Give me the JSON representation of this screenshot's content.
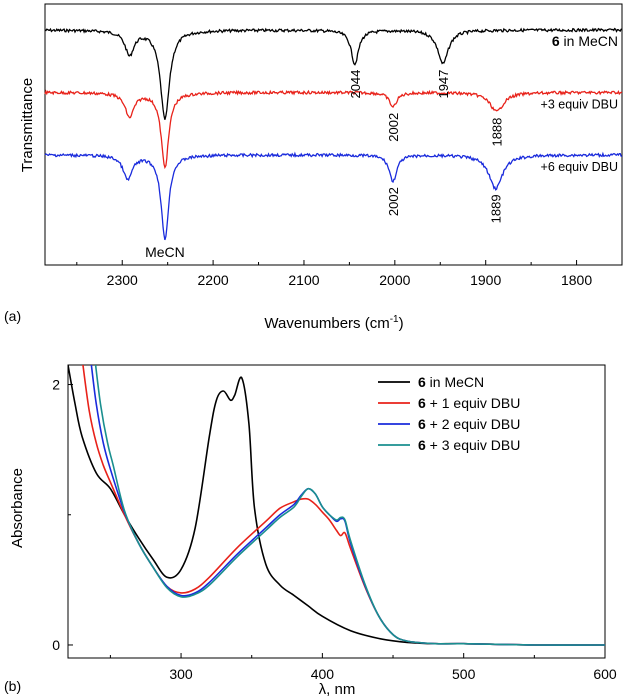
{
  "chart_data": [
    {
      "type": "line",
      "panel_label": "(a)",
      "xlabel": "Wavenumbers (cm",
      "xlabel_sup": "-1",
      "xlabel_close": ")",
      "ylabel": "Transmittance",
      "xlim": [
        2385,
        1750
      ],
      "x_reversed": true,
      "y_ticks_shown": false,
      "x_ticks": [
        2300,
        2200,
        2100,
        2000,
        1900,
        1800
      ],
      "series": [
        {
          "name_bold": "6",
          "name_rest": " in MeCN",
          "color": "#000000",
          "baseline": 0,
          "peaks": [
            {
              "center": 2292,
              "depth": 0.1,
              "width": 6
            },
            {
              "center": 2253,
              "depth": 0.37,
              "width": 6
            },
            {
              "center": 2044,
              "depth": 0.14,
              "width": 5
            },
            {
              "center": 1947,
              "depth": 0.14,
              "width": 7
            }
          ]
        },
        {
          "name": "+3 equiv DBU",
          "color": "#e8221a",
          "baseline": 0.26,
          "peaks": [
            {
              "center": 2292,
              "depth": 0.1,
              "width": 6
            },
            {
              "center": 2253,
              "depth": 0.31,
              "width": 5
            },
            {
              "center": 2002,
              "depth": 0.06,
              "width": 5
            },
            {
              "center": 1888,
              "depth": 0.08,
              "width": 9
            }
          ]
        },
        {
          "name": "+6 equiv DBU",
          "color": "#1a2bdc",
          "baseline": 0.52,
          "peaks": [
            {
              "center": 2294,
              "depth": 0.1,
              "width": 6
            },
            {
              "center": 2253,
              "depth": 0.35,
              "width": 5
            },
            {
              "center": 2002,
              "depth": 0.11,
              "width": 5
            },
            {
              "center": 1889,
              "depth": 0.14,
              "width": 9
            }
          ]
        }
      ],
      "annotations": [
        {
          "text": "2044",
          "x": 2044,
          "series": 0
        },
        {
          "text": "1947",
          "x": 1947,
          "series": 0
        },
        {
          "text": "2002",
          "x": 2002,
          "series": 1
        },
        {
          "text": "1888",
          "x": 1888,
          "series": 1
        },
        {
          "text": "2002",
          "x": 2002,
          "series": 2
        },
        {
          "text": "1889",
          "x": 1889,
          "series": 2
        },
        {
          "text": "MeCN",
          "x": 2253,
          "series": 2
        }
      ]
    },
    {
      "type": "line",
      "panel_label": "(b)",
      "xlabel": "λ, nm",
      "ylabel": "Absorbance",
      "xlim": [
        220,
        600
      ],
      "ylim": [
        -0.1,
        2.15
      ],
      "x_ticks": [
        300,
        400,
        500,
        600
      ],
      "y_ticks": [
        0,
        2
      ],
      "legend_position": "top-right",
      "series": [
        {
          "name_bold": "6",
          "name_rest": " in MeCN",
          "color": "#000000",
          "x": [
            220,
            225,
            230,
            240,
            250,
            260,
            270,
            280,
            290,
            300,
            310,
            320,
            325,
            330,
            335,
            338,
            343,
            348,
            352,
            360,
            370,
            380,
            390,
            400,
            420,
            440,
            460,
            480,
            500,
            550,
            600
          ],
          "y": [
            2.15,
            1.85,
            1.6,
            1.32,
            1.2,
            1.0,
            0.82,
            0.66,
            0.52,
            0.58,
            0.9,
            1.6,
            1.88,
            1.95,
            1.88,
            1.92,
            2.05,
            1.7,
            1.05,
            0.62,
            0.46,
            0.38,
            0.3,
            0.22,
            0.11,
            0.05,
            0.02,
            0.01,
            0.01,
            0.0,
            0.0
          ]
        },
        {
          "name_bold": "6",
          "name_rest": " + 1 equiv DBU",
          "color": "#e8221a",
          "x": [
            230,
            235,
            240,
            245,
            250,
            260,
            270,
            280,
            290,
            300,
            310,
            320,
            340,
            360,
            370,
            380,
            385,
            390,
            395,
            400,
            405,
            410,
            413,
            416,
            420,
            430,
            440,
            450,
            460,
            480,
            500,
            550,
            600
          ],
          "y": [
            2.2,
            1.8,
            1.55,
            1.38,
            1.25,
            1.0,
            0.78,
            0.6,
            0.45,
            0.4,
            0.43,
            0.52,
            0.75,
            0.95,
            1.05,
            1.1,
            1.12,
            1.12,
            1.08,
            1.02,
            0.96,
            0.88,
            0.84,
            0.86,
            0.74,
            0.45,
            0.22,
            0.08,
            0.03,
            0.01,
            0.01,
            0.0,
            0.0
          ]
        },
        {
          "name_bold": "6",
          "name_rest": " + 2 equiv DBU",
          "color": "#1a2bdc",
          "x": [
            236,
            240,
            245,
            250,
            260,
            270,
            280,
            290,
            300,
            310,
            320,
            340,
            360,
            370,
            380,
            385,
            390,
            395,
            400,
            405,
            410,
            413,
            416,
            420,
            430,
            440,
            450,
            460,
            480,
            500,
            550,
            600
          ],
          "y": [
            2.2,
            1.85,
            1.55,
            1.35,
            1.02,
            0.78,
            0.6,
            0.45,
            0.38,
            0.4,
            0.48,
            0.7,
            0.9,
            1.0,
            1.08,
            1.15,
            1.2,
            1.16,
            1.06,
            1.0,
            0.95,
            0.97,
            0.95,
            0.78,
            0.46,
            0.22,
            0.08,
            0.03,
            0.01,
            0.01,
            0.0,
            0.0
          ]
        },
        {
          "name_bold": "6",
          "name_rest": " + 3 equiv DBU",
          "color": "#1a8f8f",
          "x": [
            239,
            243,
            248,
            252,
            260,
            270,
            280,
            290,
            300,
            310,
            320,
            340,
            360,
            370,
            380,
            385,
            390,
            395,
            400,
            405,
            410,
            413,
            416,
            420,
            430,
            440,
            450,
            460,
            480,
            500,
            550,
            600
          ],
          "y": [
            2.2,
            1.85,
            1.55,
            1.38,
            1.03,
            0.78,
            0.6,
            0.44,
            0.37,
            0.39,
            0.46,
            0.68,
            0.88,
            0.98,
            1.06,
            1.14,
            1.2,
            1.16,
            1.06,
            1.0,
            0.96,
            0.98,
            0.96,
            0.8,
            0.47,
            0.22,
            0.08,
            0.03,
            0.01,
            0.01,
            0.0,
            0.0
          ]
        }
      ]
    }
  ]
}
